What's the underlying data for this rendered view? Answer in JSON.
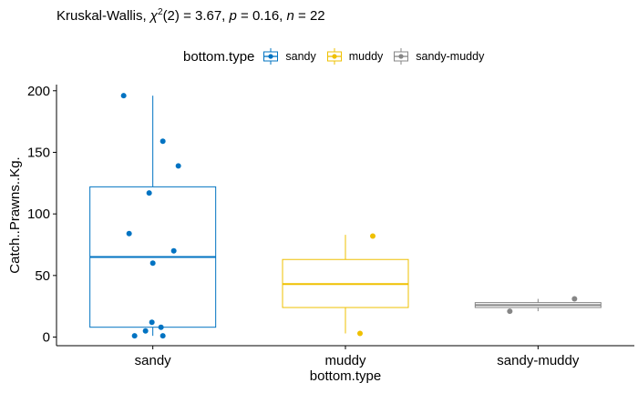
{
  "stat_test": {
    "prefix": "Kruskal-Wallis, ",
    "chi": "χ",
    "chi_sup": "2",
    "df_and_stat": "(2) = 3.67, ",
    "p_symbol": "p",
    "p_value": " = 0.16, ",
    "n_symbol": "n",
    "n_value": " = 22"
  },
  "chart_data": {
    "type": "boxplot",
    "xlabel": "bottom.type",
    "ylabel": "Catch..Prawns..Kg.",
    "ylim": [
      -7,
      205
    ],
    "yticks": [
      0,
      50,
      100,
      150,
      200
    ],
    "legend_title": "bottom.type",
    "legend_position": "top",
    "grid": false,
    "categories": [
      "sandy",
      "muddy",
      "sandy-muddy"
    ],
    "series": [
      {
        "name": "sandy",
        "color": "#0073C2",
        "box": {
          "min": 1,
          "q1": 8,
          "median": 65,
          "q3": 122,
          "max": 196
        },
        "points": [
          196,
          159,
          139,
          117,
          84,
          70,
          60,
          12,
          8,
          5,
          1,
          1
        ]
      },
      {
        "name": "muddy",
        "color": "#EFC000",
        "box": {
          "min": 3,
          "q1": 24,
          "median": 43,
          "q3": 63,
          "max": 83
        },
        "points": [
          82,
          3
        ]
      },
      {
        "name": "sandy-muddy",
        "color": "#868686",
        "box": {
          "min": 21,
          "q1": 24,
          "median": 26,
          "q3": 28,
          "max": 31
        },
        "points": [
          31,
          21
        ]
      }
    ]
  }
}
